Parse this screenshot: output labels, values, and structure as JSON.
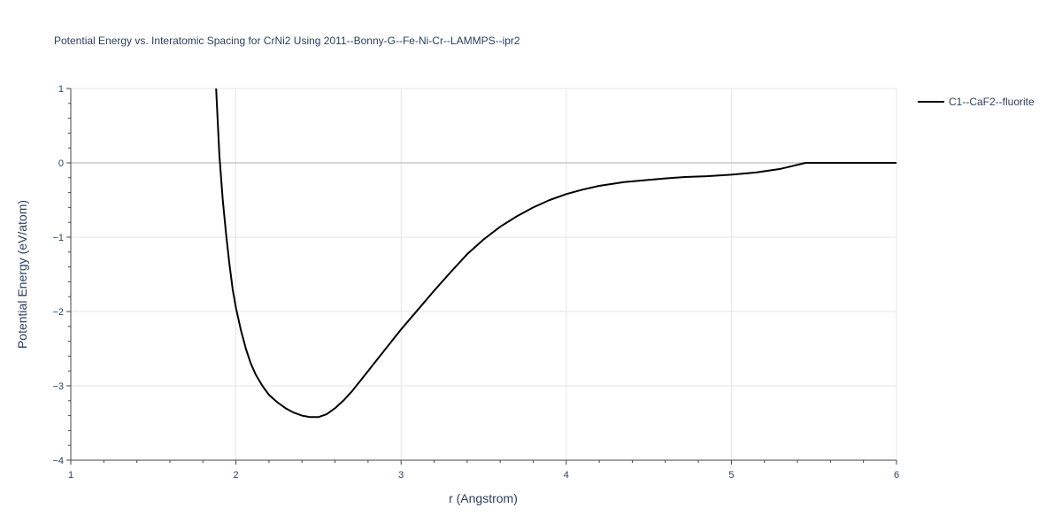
{
  "chart_data": {
    "type": "line",
    "title": "Potential Energy vs. Interatomic Spacing for CrNi2 Using 2011--Bonny-G--Fe-Ni-Cr--LAMMPS--ipr2",
    "xlabel": "r (Angstrom)",
    "ylabel": "Potential Energy (eV/atom)",
    "xlim": [
      1,
      6
    ],
    "ylim": [
      -4,
      1
    ],
    "xticks": [
      1,
      2,
      3,
      4,
      5,
      6
    ],
    "yticks": [
      1,
      0,
      -1,
      -2,
      -3,
      -4
    ],
    "xtick_labels": [
      "1",
      "2",
      "3",
      "4",
      "5",
      "6"
    ],
    "ytick_labels": [
      "1",
      "0",
      "−1",
      "−2",
      "−3",
      "−4"
    ],
    "grid": true,
    "legend_position": "top-right",
    "series": [
      {
        "name": "C1--CaF2--fluorite",
        "color": "#000000",
        "x": [
          1.88,
          1.9,
          1.92,
          1.94,
          1.96,
          1.98,
          2.0,
          2.03,
          2.06,
          2.09,
          2.12,
          2.16,
          2.2,
          2.25,
          2.3,
          2.35,
          2.4,
          2.45,
          2.5,
          2.55,
          2.6,
          2.65,
          2.7,
          2.8,
          2.9,
          3.0,
          3.1,
          3.2,
          3.3,
          3.4,
          3.5,
          3.6,
          3.7,
          3.8,
          3.9,
          4.0,
          4.1,
          4.2,
          4.35,
          4.5,
          4.6,
          4.72,
          4.85,
          5.0,
          5.15,
          5.3,
          5.45,
          5.55,
          5.7,
          5.85,
          6.0
        ],
        "y": [
          1.0,
          0.1,
          -0.5,
          -0.95,
          -1.35,
          -1.7,
          -1.95,
          -2.25,
          -2.5,
          -2.7,
          -2.85,
          -3.0,
          -3.12,
          -3.22,
          -3.3,
          -3.36,
          -3.4,
          -3.42,
          -3.42,
          -3.38,
          -3.3,
          -3.2,
          -3.08,
          -2.8,
          -2.52,
          -2.24,
          -1.98,
          -1.72,
          -1.47,
          -1.23,
          -1.03,
          -0.86,
          -0.72,
          -0.6,
          -0.5,
          -0.42,
          -0.36,
          -0.31,
          -0.26,
          -0.23,
          -0.21,
          -0.19,
          -0.18,
          -0.16,
          -0.13,
          -0.08,
          0.0,
          0.0,
          0.0,
          0.0,
          0.0
        ]
      }
    ]
  }
}
